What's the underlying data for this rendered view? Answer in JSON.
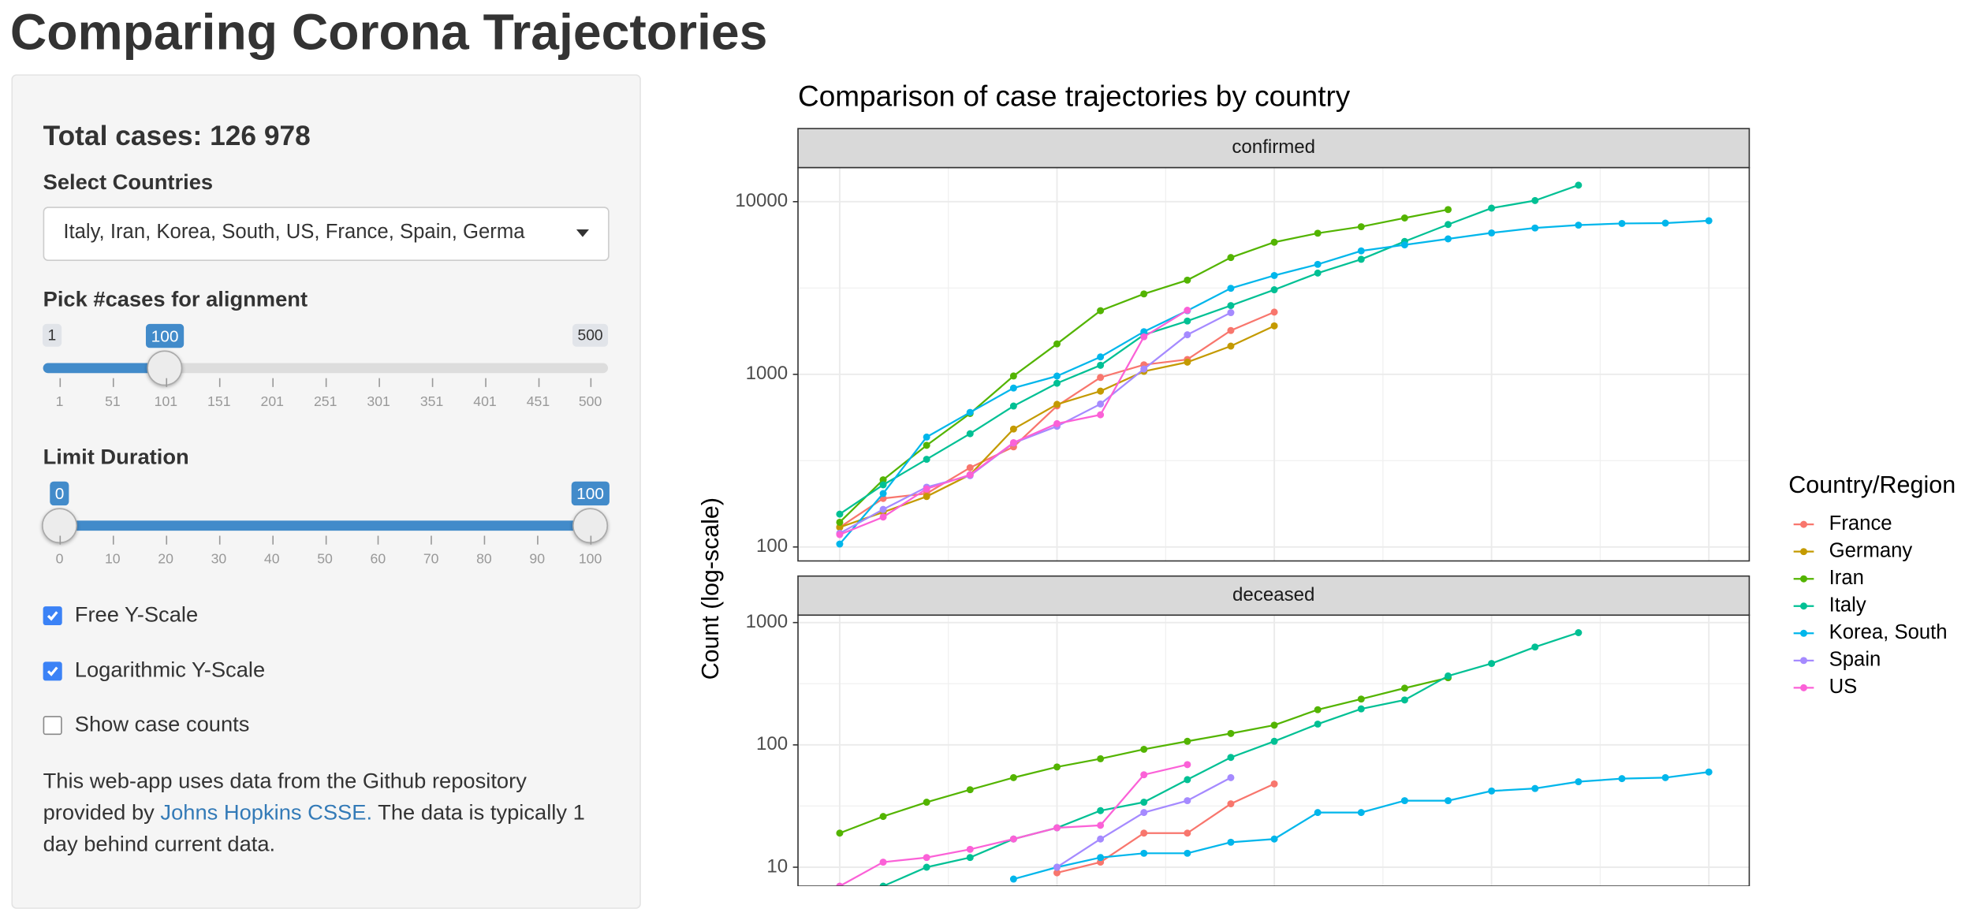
{
  "title": "Comparing Corona Trajectories",
  "sidebar": {
    "total_cases": "Total cases: 126 978",
    "countries": {
      "label": "Select Countries",
      "selected": "Italy, Iran, Korea, South, US, France, Spain, Germa"
    },
    "alignment": {
      "label": "Pick #cases for alignment",
      "min": 1,
      "max": 500,
      "value": 100,
      "ticks": [
        1,
        51,
        101,
        151,
        201,
        251,
        301,
        351,
        401,
        451,
        500
      ]
    },
    "duration": {
      "label": "Limit Duration",
      "min": 0,
      "max": 100,
      "values": [
        0,
        100
      ],
      "ticks": [
        0,
        10,
        20,
        30,
        40,
        50,
        60,
        70,
        80,
        90,
        100
      ]
    },
    "checkboxes": [
      {
        "label": "Free Y-Scale",
        "checked": true
      },
      {
        "label": "Logarithmic Y-Scale",
        "checked": true
      },
      {
        "label": "Show case counts",
        "checked": false
      }
    ],
    "note": {
      "before": "This web-app uses data from the Github repository provided by ",
      "link": "Johns Hopkins CSSE.",
      "after": " The data is typically 1 day behind current data."
    }
  },
  "chart_data": {
    "type": "line",
    "title": "Comparison of case trajectories by country",
    "ylabel": "Count (log-scale)",
    "legend_title": "Country/Region",
    "log_y": true,
    "grid": true,
    "legend": "right",
    "x": [
      0,
      1,
      2,
      3,
      4,
      5,
      6,
      7,
      8,
      9,
      10,
      11,
      12,
      13,
      14,
      15,
      16,
      17,
      18,
      19,
      20
    ],
    "xlim": [
      -0.96,
      20.93
    ],
    "xticks": [
      0,
      5,
      10,
      15,
      20
    ],
    "panels": [
      {
        "label": "confirmed",
        "ylim": [
          83,
          15740
        ],
        "yticks": [
          100,
          1000,
          10000
        ]
      },
      {
        "label": "deceased",
        "ylim": [
          7,
          1150
        ],
        "yticks": [
          10,
          100,
          1000
        ]
      }
    ],
    "series": [
      {
        "name": "France",
        "color": "#F8766D",
        "values": [
          [
            130,
            191,
            204,
            288,
            380,
            656,
            959,
            1136,
            1219,
            1794,
            2293,
            null,
            null,
            null,
            null,
            null,
            null,
            null,
            null,
            null,
            null
          ],
          [
            null,
            null,
            null,
            null,
            null,
            9,
            11,
            19,
            19,
            33,
            48,
            null,
            null,
            null,
            null,
            null,
            null,
            null,
            null,
            null,
            null
          ]
        ]
      },
      {
        "name": "Germany",
        "color": "#C49A00",
        "values": [
          [
            130,
            159,
            196,
            262,
            482,
            670,
            799,
            1040,
            1176,
            1457,
            1908,
            null,
            null,
            null,
            null,
            null,
            null,
            null,
            null,
            null,
            null
          ],
          [
            null,
            null,
            null,
            null,
            null,
            null,
            null,
            null,
            null,
            null,
            null,
            null,
            null,
            null,
            null,
            null,
            null,
            null,
            null,
            null,
            null
          ]
        ]
      },
      {
        "name": "Iran",
        "color": "#53B400",
        "values": [
          [
            139,
            245,
            388,
            593,
            978,
            1501,
            2336,
            2922,
            3513,
            4747,
            5823,
            6566,
            7161,
            8042,
            9000,
            null,
            null,
            null,
            null,
            null,
            null
          ],
          [
            19,
            26,
            34,
            43,
            54,
            66,
            77,
            92,
            107,
            124,
            145,
            194,
            237,
            291,
            354,
            null,
            null,
            null,
            null,
            null,
            null
          ]
        ]
      },
      {
        "name": "Italy",
        "color": "#00C094",
        "values": [
          [
            155,
            229,
            322,
            453,
            655,
            888,
            1128,
            1694,
            2036,
            2502,
            3089,
            3858,
            4636,
            5883,
            7375,
            9172,
            10149,
            12462,
            null,
            null,
            null
          ],
          [
            null,
            7,
            10,
            12,
            17,
            21,
            29,
            34,
            52,
            79,
            107,
            148,
            197,
            233,
            366,
            463,
            631,
            827,
            null,
            null,
            null
          ]
        ]
      },
      {
        "name": "Korea, South",
        "color": "#00B6EB",
        "values": [
          [
            104,
            204,
            433,
            602,
            833,
            977,
            1261,
            1766,
            2337,
            3150,
            3736,
            4335,
            5186,
            5621,
            6088,
            6593,
            7041,
            7314,
            7478,
            7513,
            7755
          ],
          [
            null,
            null,
            null,
            null,
            8,
            10,
            12,
            13,
            13,
            16,
            17,
            28,
            28,
            35,
            35,
            42,
            44,
            50,
            53,
            54,
            60
          ]
        ]
      },
      {
        "name": "Spain",
        "color": "#A58AFF",
        "values": [
          [
            120,
            165,
            222,
            259,
            400,
            500,
            673,
            1073,
            1695,
            2277,
            null,
            null,
            null,
            null,
            null,
            null,
            null,
            null,
            null,
            null,
            null
          ],
          [
            null,
            null,
            null,
            null,
            null,
            10,
            17,
            28,
            35,
            54,
            null,
            null,
            null,
            null,
            null,
            null,
            null,
            null,
            null,
            null,
            null
          ]
        ]
      },
      {
        "name": "US",
        "color": "#FB61D7",
        "values": [
          [
            118,
            149,
            217,
            262,
            402,
            518,
            583,
            1650,
            2350,
            null,
            null,
            null,
            null,
            null,
            null,
            null,
            null,
            null,
            null,
            null,
            null
          ],
          [
            7,
            11,
            12,
            14,
            17,
            21,
            22,
            57,
            69,
            null,
            null,
            null,
            null,
            null,
            null,
            null,
            null,
            null,
            null,
            null,
            null
          ]
        ]
      }
    ]
  }
}
